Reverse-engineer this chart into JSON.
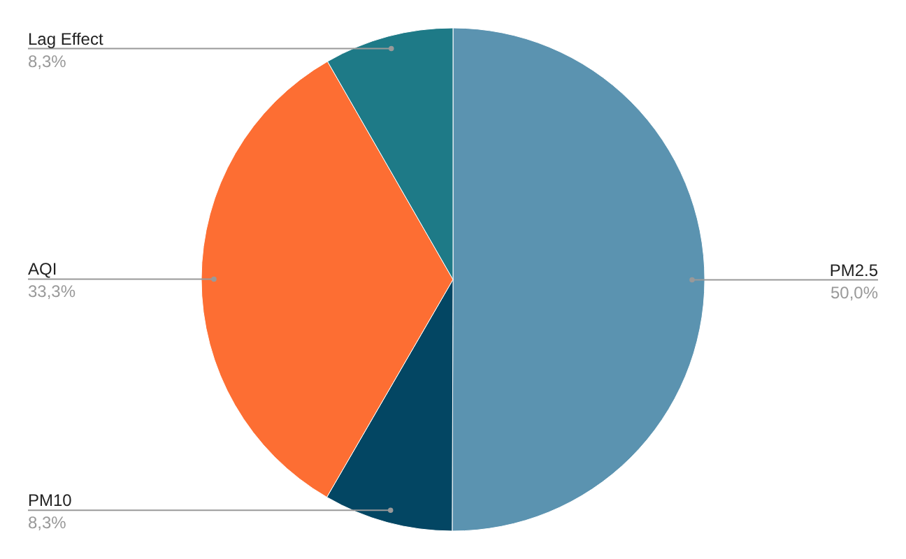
{
  "chart_data": {
    "type": "pie",
    "categories": [
      "PM2.5",
      "PM10",
      "AQI",
      "Lag Effect"
    ],
    "values": [
      50.0,
      8.3,
      33.3,
      8.3
    ],
    "colors": [
      "#5b93b0",
      "#034663",
      "#fd6e33",
      "#1e7a87"
    ],
    "value_labels": [
      "50,0%",
      "8,3%",
      "33,3%",
      "8,3%"
    ]
  }
}
